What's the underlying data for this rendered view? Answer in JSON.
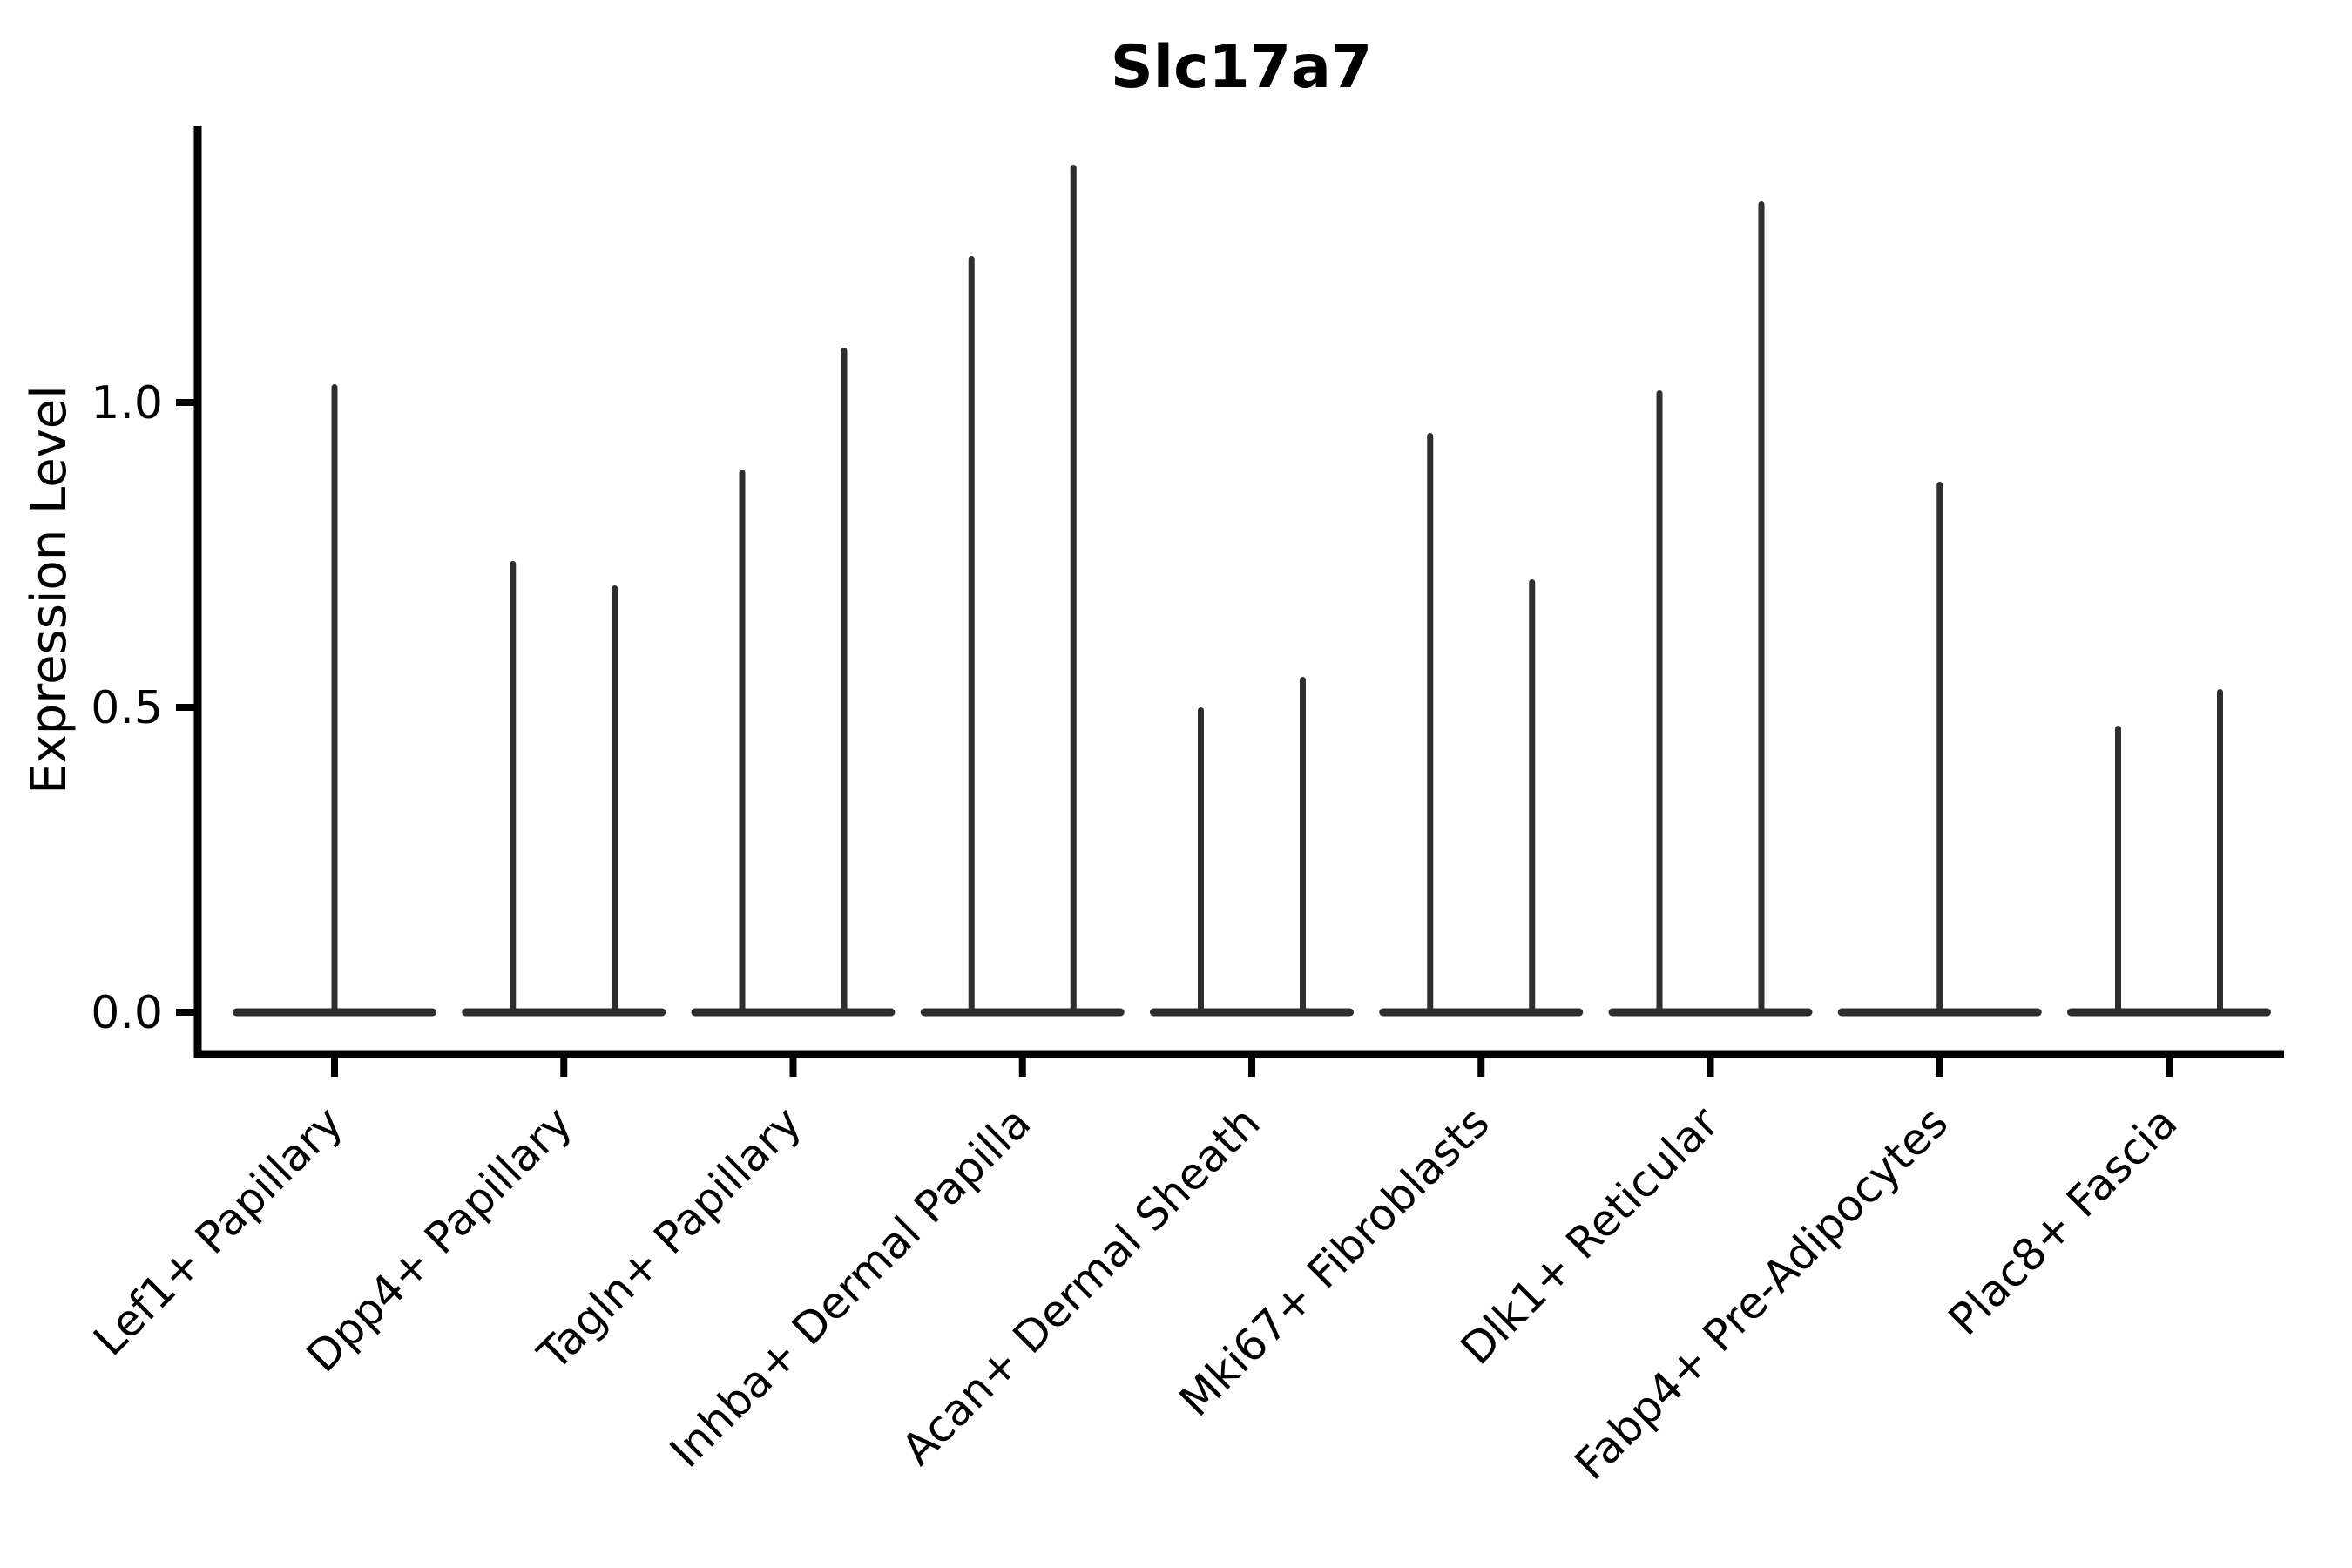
{
  "chart_data": {
    "type": "violin",
    "title": "Slc17a7",
    "xlabel": "",
    "ylabel": "Expression Level",
    "grid": false,
    "legend": "none",
    "ylim": [
      -0.07,
      1.45
    ],
    "yticks": [
      {
        "label": "0.0",
        "value": 0.0
      },
      {
        "label": "0.5",
        "value": 0.5
      },
      {
        "label": "1.0",
        "value": 1.0
      }
    ],
    "categories": [
      {
        "label": "Lef1+ Papillary",
        "max_expression": [
          1.03
        ]
      },
      {
        "label": "Dpp4+ Papillary",
        "max_expression": [
          0.74,
          0.7
        ]
      },
      {
        "label": "Tagln+ Papillary",
        "max_expression": [
          0.89,
          1.09
        ]
      },
      {
        "label": "Inhba+ Dermal Papilla",
        "max_expression": [
          1.24,
          1.39
        ]
      },
      {
        "label": "Acan+ Dermal Sheath",
        "max_expression": [
          0.5,
          0.55
        ]
      },
      {
        "label": "Mki67+ Fibroblasts",
        "max_expression": [
          0.95,
          0.71
        ]
      },
      {
        "label": "Dlk1+ Reticular",
        "max_expression": [
          1.02,
          1.33
        ]
      },
      {
        "label": "Fabp4+ Pre-Adipocytes",
        "max_expression": [
          0.87
        ]
      },
      {
        "label": "Plac8+ Fascia",
        "max_expression": [
          0.47,
          0.53
        ]
      }
    ],
    "colors": {
      "violin": "#2e2e2e",
      "axis": "#000000",
      "text": "#000000",
      "background": "#ffffff"
    }
  }
}
